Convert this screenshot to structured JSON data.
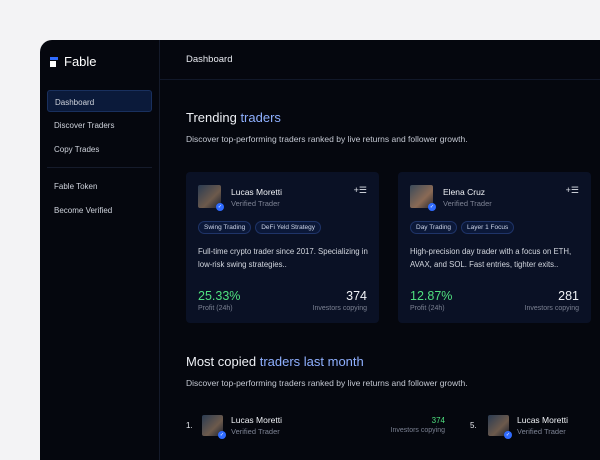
{
  "app": {
    "name": "Fable",
    "brand_color": "#2f6bff"
  },
  "sidebar": {
    "items": [
      {
        "label": "Dashboard",
        "active": true
      },
      {
        "label": "Discover Traders"
      },
      {
        "label": "Copy Trades"
      },
      {
        "label": "Fable Token"
      },
      {
        "label": "Become Verified"
      }
    ]
  },
  "header": {
    "title": "Dashboard"
  },
  "trending": {
    "title": "Trending ",
    "title_accent": "traders",
    "subtitle": "Discover top-performing traders ranked by live returns and follower growth.",
    "cards": [
      {
        "name": "Lucas Moretti",
        "role": "Verified Trader",
        "tags": [
          "Swing Trading",
          "DeFi Yeld Strategy"
        ],
        "description": "Full-time crypto trader since 2017. Specializing in low-risk swing strategies..",
        "profit": "25.33%",
        "profit_label": "Profit (24h)",
        "investors": "374",
        "investors_label": "Investors copying"
      },
      {
        "name": "Elena Cruz",
        "role": "Verified Trader",
        "tags": [
          "Day Trading",
          "Layer 1 Focus"
        ],
        "description": "High-precision day trader with a focus on ETH, AVAX, and SOL. Fast entries, tighter exits..",
        "profit": "12.87%",
        "profit_label": "Profit (24h)",
        "investors": "281",
        "investors_label": "Investors copying"
      }
    ]
  },
  "most_copied": {
    "title": "Most copied ",
    "title_accent": "traders last month",
    "subtitle": "Discover top-performing traders ranked by live returns and follower growth.",
    "rows": [
      {
        "rank": "1.",
        "name": "Lucas Moretti",
        "role": "Verified Trader",
        "investors": "374",
        "investors_label": "Investors copying"
      },
      {
        "rank": "5.",
        "name": "Lucas Moretti",
        "role": "Verified Trader"
      }
    ]
  }
}
